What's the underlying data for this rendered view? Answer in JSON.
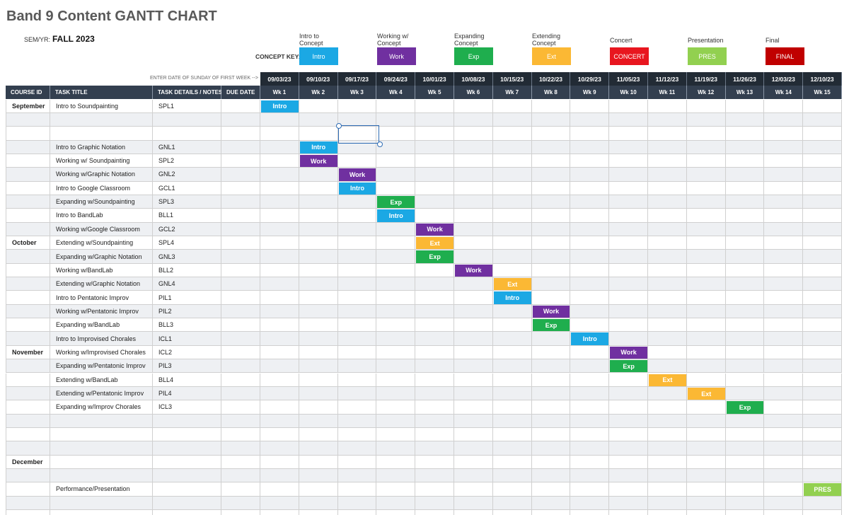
{
  "header": {
    "title": "Band 9 Content GANTT CHART",
    "sem_label": "SEM/YR:",
    "sem_value": "FALL 2023",
    "concept_key_label": "CONCEPT KEY:",
    "date_hint": "ENTER DATE OF SUNDAY OF FIRST WEEK -->"
  },
  "concept_key": [
    {
      "label": "Intro to Concept",
      "text": "Intro",
      "color": "#1ba8e4"
    },
    {
      "label": "Working w/ Concept",
      "text": "Work",
      "color": "#7030a0"
    },
    {
      "label": "Expanding Concept",
      "text": "Exp",
      "color": "#1fae4e"
    },
    {
      "label": "Extending Concept",
      "text": "Ext",
      "color": "#fbb834"
    },
    {
      "label": "Concert",
      "text": "CONCERT",
      "color": "#e8161f"
    },
    {
      "label": "Presentation",
      "text": "PRES",
      "color": "#92d050"
    },
    {
      "label": "Final",
      "text": "FINAL",
      "color": "#c00000"
    }
  ],
  "table": {
    "columns": [
      "COURSE ID",
      "TASK TITLE",
      "TASK DETAILS / NOTES",
      "DUE DATE"
    ],
    "dates": [
      "09/03/23",
      "09/10/23",
      "09/17/23",
      "09/24/23",
      "10/01/23",
      "10/08/23",
      "10/15/23",
      "10/22/23",
      "10/29/23",
      "11/05/23",
      "11/12/23",
      "11/19/23",
      "11/26/23",
      "12/03/23",
      "12/10/23"
    ],
    "weeks": [
      "Wk 1",
      "Wk 2",
      "Wk 3",
      "Wk 4",
      "Wk 5",
      "Wk 6",
      "Wk 7",
      "Wk 8",
      "Wk 9",
      "Wk 10",
      "Wk 11",
      "Wk 12",
      "Wk 13",
      "Wk 14",
      "Wk 15"
    ],
    "rows": [
      {
        "course_id": "September",
        "task": "Intro to Soundpainting",
        "details": "SPL1",
        "schedule": [
          "Intro",
          null,
          null,
          null,
          null,
          null,
          null,
          null,
          null,
          null,
          null,
          null,
          null,
          null,
          null
        ]
      },
      {},
      {},
      {
        "task": "Intro to Graphic Notation",
        "details": "GNL1",
        "schedule": [
          null,
          "Intro",
          null,
          null,
          null,
          null,
          null,
          null,
          null,
          null,
          null,
          null,
          null,
          null,
          null
        ]
      },
      {
        "task": "Working w/ Soundpainting",
        "details": "SPL2",
        "schedule": [
          null,
          "Work",
          null,
          null,
          null,
          null,
          null,
          null,
          null,
          null,
          null,
          null,
          null,
          null,
          null
        ]
      },
      {
        "task": "Working w/Graphic Notation",
        "details": "GNL2",
        "schedule": [
          null,
          null,
          "Work",
          null,
          null,
          null,
          null,
          null,
          null,
          null,
          null,
          null,
          null,
          null,
          null
        ]
      },
      {
        "task": "Intro to Google Classroom",
        "details": "GCL1",
        "schedule": [
          null,
          null,
          "Intro",
          null,
          null,
          null,
          null,
          null,
          null,
          null,
          null,
          null,
          null,
          null,
          null
        ]
      },
      {
        "task": "Expanding w/Soundpainting",
        "details": "SPL3",
        "schedule": [
          null,
          null,
          null,
          "Exp",
          null,
          null,
          null,
          null,
          null,
          null,
          null,
          null,
          null,
          null,
          null
        ]
      },
      {
        "task": "Intro to BandLab",
        "details": "BLL1",
        "schedule": [
          null,
          null,
          null,
          "Intro",
          null,
          null,
          null,
          null,
          null,
          null,
          null,
          null,
          null,
          null,
          null
        ]
      },
      {
        "task": "Working w/Google Classroom",
        "details": "GCL2",
        "schedule": [
          null,
          null,
          null,
          null,
          "Work",
          null,
          null,
          null,
          null,
          null,
          null,
          null,
          null,
          null,
          null
        ]
      },
      {
        "course_id": "October",
        "task": "Extending w/Soundpainting",
        "details": "SPL4",
        "schedule": [
          null,
          null,
          null,
          null,
          "Ext",
          null,
          null,
          null,
          null,
          null,
          null,
          null,
          null,
          null,
          null
        ]
      },
      {
        "task": "Expanding w/Graphic Notation",
        "details": "GNL3",
        "schedule": [
          null,
          null,
          null,
          null,
          "Exp",
          null,
          null,
          null,
          null,
          null,
          null,
          null,
          null,
          null,
          null
        ]
      },
      {
        "task": "Working w/BandLab",
        "details": "BLL2",
        "schedule": [
          null,
          null,
          null,
          null,
          null,
          "Work",
          null,
          null,
          null,
          null,
          null,
          null,
          null,
          null,
          null
        ]
      },
      {
        "task": "Extending w/Graphic Notation",
        "details": "GNL4",
        "schedule": [
          null,
          null,
          null,
          null,
          null,
          null,
          "Ext",
          null,
          null,
          null,
          null,
          null,
          null,
          null,
          null
        ]
      },
      {
        "task": "Intro to Pentatonic Improv",
        "details": "PIL1",
        "schedule": [
          null,
          null,
          null,
          null,
          null,
          null,
          "Intro",
          null,
          null,
          null,
          null,
          null,
          null,
          null,
          null
        ]
      },
      {
        "task": "Working w/Pentatonic Improv",
        "details": "PIL2",
        "schedule": [
          null,
          null,
          null,
          null,
          null,
          null,
          null,
          "Work",
          null,
          null,
          null,
          null,
          null,
          null,
          null
        ]
      },
      {
        "task": "Expanding w/BandLab",
        "details": "BLL3",
        "schedule": [
          null,
          null,
          null,
          null,
          null,
          null,
          null,
          "Exp",
          null,
          null,
          null,
          null,
          null,
          null,
          null
        ]
      },
      {
        "task": "Intro to Improvised Chorales",
        "details": "ICL1",
        "schedule": [
          null,
          null,
          null,
          null,
          null,
          null,
          null,
          null,
          "Intro",
          null,
          null,
          null,
          null,
          null,
          null
        ]
      },
      {
        "course_id": "November",
        "task": "Working w/Improvised Chorales",
        "details": "ICL2",
        "schedule": [
          null,
          null,
          null,
          null,
          null,
          null,
          null,
          null,
          null,
          "Work",
          null,
          null,
          null,
          null,
          null
        ]
      },
      {
        "task": "Expanding w/Pentatonic Improv",
        "details": "PIL3",
        "schedule": [
          null,
          null,
          null,
          null,
          null,
          null,
          null,
          null,
          null,
          "Exp",
          null,
          null,
          null,
          null,
          null
        ]
      },
      {
        "task": "Extending w/BandLab",
        "details": "BLL4",
        "schedule": [
          null,
          null,
          null,
          null,
          null,
          null,
          null,
          null,
          null,
          null,
          "Ext",
          null,
          null,
          null,
          null
        ]
      },
      {
        "task": "Extending w/Pentatonic Improv",
        "details": "PIL4",
        "schedule": [
          null,
          null,
          null,
          null,
          null,
          null,
          null,
          null,
          null,
          null,
          null,
          "Ext",
          null,
          null,
          null
        ]
      },
      {
        "task": "Expanding w/Improv Chorales",
        "details": "ICL3",
        "schedule": [
          null,
          null,
          null,
          null,
          null,
          null,
          null,
          null,
          null,
          null,
          null,
          null,
          "Exp",
          null,
          null
        ]
      },
      {},
      {},
      {},
      {
        "course_id": "December"
      },
      {},
      {
        "task": "Performance/Presentation",
        "schedule": [
          null,
          null,
          null,
          null,
          null,
          null,
          null,
          null,
          null,
          null,
          null,
          null,
          null,
          null,
          "PRES"
        ]
      },
      {},
      {}
    ]
  }
}
